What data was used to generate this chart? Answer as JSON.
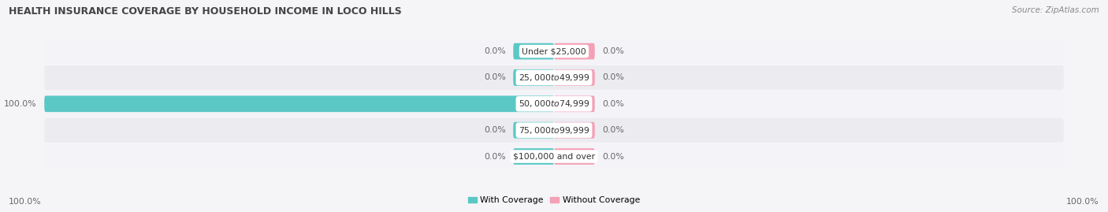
{
  "title": "HEALTH INSURANCE COVERAGE BY HOUSEHOLD INCOME IN LOCO HILLS",
  "source": "Source: ZipAtlas.com",
  "categories": [
    "Under $25,000",
    "$25,000 to $49,999",
    "$50,000 to $74,999",
    "$75,000 to $99,999",
    "$100,000 and over"
  ],
  "with_coverage": [
    0.0,
    0.0,
    100.0,
    0.0,
    0.0
  ],
  "without_coverage": [
    0.0,
    0.0,
    0.0,
    0.0,
    0.0
  ],
  "coverage_color": "#5bc8c5",
  "no_coverage_color": "#f4a0b5",
  "row_bg_color_odd": "#ebebf0",
  "row_bg_color_even": "#f4f4f8",
  "bg_color": "#f5f5f8",
  "title_color": "#444444",
  "label_color": "#666666",
  "axis_label_left": "100.0%",
  "axis_label_right": "100.0%",
  "legend_labels": [
    "With Coverage",
    "Without Coverage"
  ],
  "stub_size": 8.0,
  "figsize": [
    14.06,
    2.69
  ],
  "dpi": 100
}
